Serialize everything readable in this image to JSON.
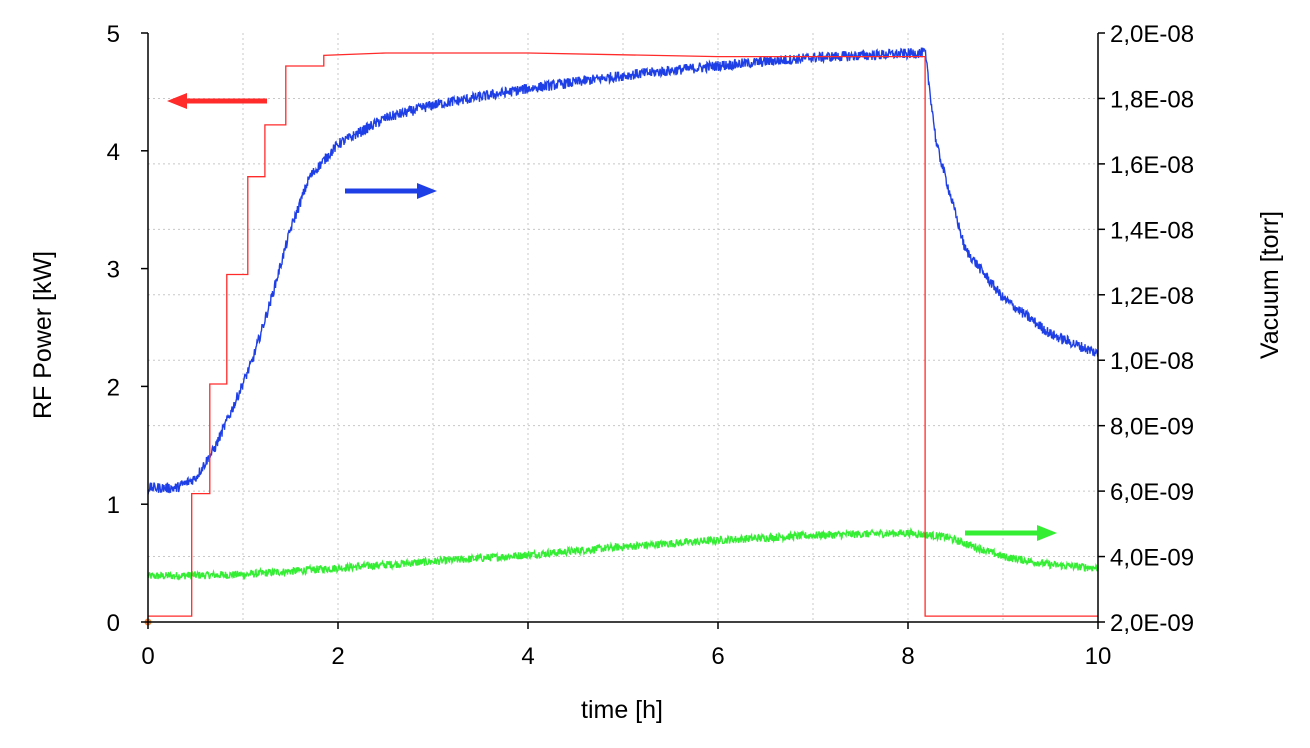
{
  "chart_data": {
    "type": "line",
    "xlabel": "time [h]",
    "ylabel_left": "RF Power [kW]",
    "ylabel_right": "Vacuum [torr]",
    "xlim": [
      0,
      10
    ],
    "ylim_left": [
      0,
      5
    ],
    "ylim_right": [
      2e-09,
      2e-08
    ],
    "x_ticks": [
      "0",
      "2",
      "4",
      "6",
      "8",
      "10"
    ],
    "y_left_ticks": [
      "0",
      "1",
      "2",
      "3",
      "4",
      "5"
    ],
    "y_right_ticks": [
      "2,0E-09",
      "4,0E-09",
      "6,0E-09",
      "8,0E-09",
      "1,0E-08",
      "1,2E-08",
      "1,4E-08",
      "1,6E-08",
      "1,8E-08",
      "2,0E-08"
    ],
    "grid": true,
    "series": [
      {
        "axis": "left",
        "color": "#ff2a2a",
        "step": true,
        "noise": 0,
        "x": [
          0,
          0.46,
          0.46,
          0.65,
          0.65,
          0.83,
          0.83,
          1.05,
          1.05,
          1.23,
          1.23,
          1.45,
          1.45,
          1.85,
          1.85,
          2.5,
          4.0,
          6.0,
          7.5,
          8.18,
          8.18,
          10.0
        ],
        "y": [
          0.05,
          0.05,
          1.09,
          1.09,
          2.02,
          2.02,
          2.95,
          2.95,
          3.78,
          3.78,
          4.22,
          4.22,
          4.72,
          4.72,
          4.81,
          4.83,
          4.83,
          4.8,
          4.8,
          4.8,
          0.05,
          0.05
        ]
      },
      {
        "axis": "right",
        "color": "#1f3fe6",
        "step": false,
        "noise": 1.6e-10,
        "x": [
          0,
          0.3,
          0.5,
          0.7,
          0.9,
          1.1,
          1.3,
          1.5,
          1.7,
          2.0,
          2.5,
          3.0,
          4.0,
          5.0,
          6.0,
          7.0,
          8.0,
          8.18,
          8.3,
          8.6,
          9.0,
          9.5,
          10.0
        ],
        "y": [
          6.1e-09,
          6.1e-09,
          6.4e-09,
          7.3e-09,
          8.6e-09,
          1e-08,
          1.19e-08,
          1.4e-08,
          1.56e-08,
          1.66e-08,
          1.74e-08,
          1.78e-08,
          1.83e-08,
          1.87e-08,
          1.9e-08,
          1.925e-08,
          1.937e-08,
          1.94e-08,
          1.66e-08,
          1.34e-08,
          1.19e-08,
          1.08e-08,
          1.02e-08
        ]
      },
      {
        "axis": "right",
        "color": "#33ee33",
        "step": false,
        "noise": 1.2e-10,
        "x": [
          0,
          1.0,
          2.0,
          3.0,
          4.0,
          5.0,
          6.0,
          7.0,
          8.0,
          8.4,
          9.0,
          9.5,
          10.0
        ],
        "y": [
          3.4e-09,
          3.45e-09,
          3.65e-09,
          3.85e-09,
          4.05e-09,
          4.3e-09,
          4.5e-09,
          4.65e-09,
          4.72e-09,
          4.6e-09,
          4e-09,
          3.75e-09,
          3.65e-09
        ]
      }
    ],
    "annotation_arrows": [
      {
        "color": "#ff2a2a",
        "direction": "left"
      },
      {
        "color": "#1f3fe6",
        "direction": "right"
      },
      {
        "color": "#33ee33",
        "direction": "right"
      }
    ]
  }
}
